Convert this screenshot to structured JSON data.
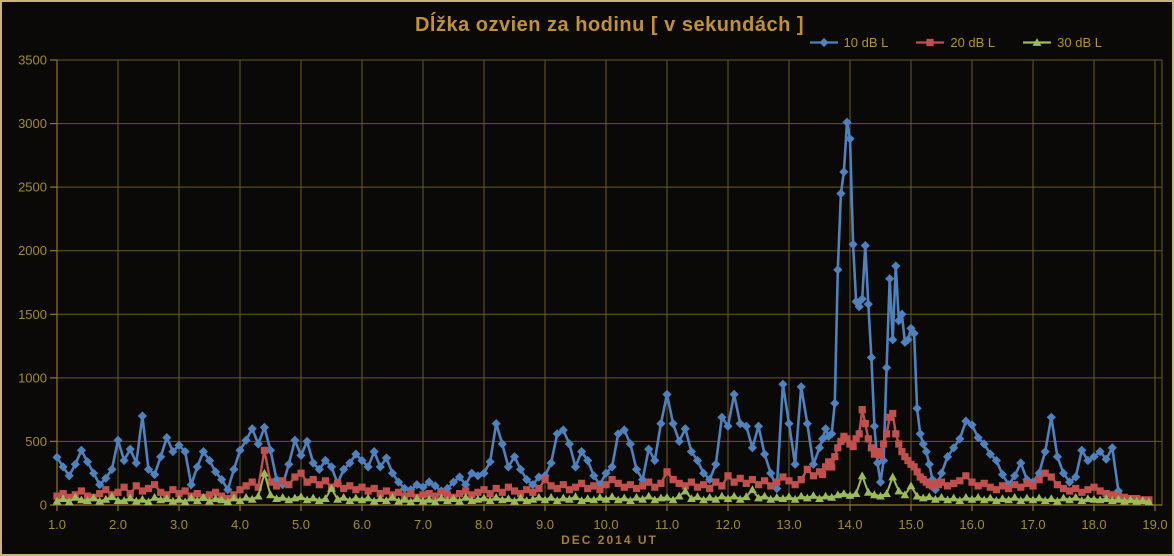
{
  "chart_data": {
    "type": "line",
    "title": "Dĺžka ozvien za hodinu [ v sekundách ]",
    "xlabel": "DEC 2014 UT",
    "ylabel": "",
    "xlim": [
      1.0,
      19.0
    ],
    "ylim": [
      0,
      3500
    ],
    "grid": true,
    "legend_position": "top-right",
    "x_ticks": [
      "1.0",
      "2.0",
      "3.0",
      "4.0",
      "5.0",
      "6.0",
      "7.0",
      "8.0",
      "9.0",
      "10.0",
      "11.0",
      "12.0",
      "13.0",
      "14.0",
      "15.0",
      "16.0",
      "17.0",
      "18.0",
      "19.0"
    ],
    "y_ticks": [
      "0",
      "500",
      "1000",
      "1500",
      "2000",
      "2500",
      "3000",
      "3500"
    ],
    "colors": {
      "background": "#0b0907",
      "frame": "#c9b27c",
      "grid": "#6a5a20",
      "axis": "#8f7926",
      "tick_label": "#a08c30",
      "title": "#bf9237",
      "axis_title": "#a08038",
      "legend_label": "#b3942e"
    },
    "series": [
      {
        "name": "10 dB L",
        "color": "#4f81bd",
        "marker": "diamond",
        "segments": [
          {
            "x0": 1.0,
            "dx": 0.1,
            "values": [
              375,
              300,
              230,
              320,
              430,
              340,
              250,
              160,
              210,
              280,
              510,
              350,
              440,
              330,
              700,
              280,
              240,
              380,
              530,
              420,
              470,
              420,
              160,
              300,
              420,
              350,
              260,
              200,
              120,
              280,
              430,
              510,
              600,
              480,
              610,
              430,
              200,
              160,
              320,
              510,
              390,
              500,
              330,
              280,
              350,
              300,
              170,
              280,
              330,
              400,
              350,
              300,
              420,
              300,
              370,
              250,
              180,
              130,
              120,
              160,
              140,
              180,
              150,
              110,
              130,
              180,
              220,
              160,
              250,
              230,
              250,
              340,
              640,
              480,
              300,
              380,
              280,
              200,
              160,
              220,
              230,
              330,
              560,
              590,
              480,
              300,
              420,
              350,
              230,
              160,
              250,
              300,
              560,
              590,
              480,
              280,
              200,
              440,
              350,
              640,
              870,
              640,
              500,
              600,
              420,
              350,
              250,
              200,
              320,
              690,
              620,
              870,
              640,
              620,
              450,
              620,
              400,
              250,
              130,
              950,
              640,
              320,
              930,
              640,
              320,
              450
            ]
          },
          {
            "x0": 13.55,
            "dx": 0.05,
            "values": [
              520,
              600,
              540,
              560,
              800,
              1850,
              2450,
              2620,
              3010,
              2880,
              2050,
              1600,
              1560,
              1620,
              2040,
              1580,
              1160,
              620,
              330,
              180,
              350,
              1080,
              1780,
              1300,
              1880,
              1450,
              1500,
              1280,
              1300,
              1390,
              1350,
              760,
              560,
              480,
              420,
              320,
              200,
              120,
              180,
              250
            ]
          },
          {
            "x0": 15.6,
            "dx": 0.1,
            "values": [
              380,
              450,
              520,
              660,
              630,
              530,
              480,
              400,
              350,
              240,
              160,
              230,
              330,
              200,
              180,
              250,
              420,
              690,
              380,
              250,
              180,
              220,
              430,
              350,
              380,
              420,
              360,
              450,
              110
            ]
          }
        ]
      },
      {
        "name": "20 dB L",
        "color": "#c0504d",
        "marker": "square",
        "segments": [
          {
            "x0": 1.0,
            "dx": 0.1,
            "values": [
              70,
              90,
              60,
              80,
              110,
              70,
              60,
              90,
              120,
              80,
              100,
              140,
              90,
              150,
              110,
              130,
              160,
              100,
              80,
              120,
              90,
              110,
              70,
              90,
              60,
              80,
              100,
              70,
              50,
              80,
              120,
              150,
              180,
              140,
              430,
              180,
              150,
              190,
              160,
              220,
              250,
              180,
              200,
              160,
              190,
              140,
              170,
              130,
              150,
              120,
              140,
              110,
              130,
              90,
              110,
              80,
              100,
              70,
              90,
              60,
              80,
              90,
              70,
              100,
              80,
              60,
              90,
              110,
              80,
              100,
              120,
              90,
              130,
              100,
              140,
              110,
              90,
              120,
              100,
              130,
              200,
              150,
              130,
              160,
              120,
              140,
              170,
              130,
              150,
              120,
              160,
              200,
              170,
              140,
              160,
              130,
              150,
              180,
              140,
              170,
              260,
              200,
              170,
              150,
              180,
              140,
              160,
              130,
              180,
              150,
              230,
              180,
              210,
              170,
              200,
              160,
              190,
              150,
              180,
              220,
              190,
              160,
              200,
              280,
              230,
              260
            ]
          },
          {
            "x0": 13.55,
            "dx": 0.05,
            "values": [
              240,
              300,
              340,
              300,
              380,
              450,
              500,
              540,
              520,
              480,
              460,
              520,
              560,
              750,
              640,
              520,
              450,
              400,
              420,
              390,
              480,
              560,
              690,
              720,
              560,
              480,
              420,
              380,
              350,
              320,
              300,
              260,
              220,
              200,
              180,
              160,
              150,
              170,
              160,
              180
            ]
          },
          {
            "x0": 15.6,
            "dx": 0.1,
            "values": [
              150,
              170,
              190,
              230,
              180,
              150,
              170,
              140,
              120,
              150,
              130,
              160,
              140,
              170,
              150,
              200,
              250,
              220,
              160,
              130,
              110,
              130,
              100,
              120,
              140,
              110,
              90,
              80,
              70,
              60,
              50,
              50,
              40,
              40
            ]
          }
        ]
      },
      {
        "name": "30 dB L",
        "color": "#9bbb59",
        "marker": "triangle",
        "segments": [
          {
            "x0": 1.0,
            "dx": 0.1,
            "values": [
              30,
              50,
              25,
              60,
              40,
              35,
              55,
              30,
              45,
              65,
              35,
              35,
              55,
              30,
              45,
              25,
              60,
              40,
              50,
              30,
              45,
              25,
              55,
              35,
              60,
              30,
              50,
              40,
              25,
              55,
              35,
              60,
              45,
              70,
              250,
              80,
              50,
              60,
              40,
              55,
              65,
              40,
              55,
              35,
              50,
              130,
              45,
              60,
              35,
              55,
              40,
              55,
              30,
              50,
              35,
              60,
              30,
              45,
              25,
              50,
              30,
              45,
              25,
              55,
              35,
              50,
              30,
              60,
              35,
              45,
              55,
              35,
              60,
              40,
              50,
              30,
              55,
              35,
              45,
              60,
              40,
              60,
              35,
              55,
              45,
              65,
              35,
              50,
              40,
              60,
              45,
              65,
              40,
              55,
              35,
              60,
              45,
              70,
              40,
              55,
              60,
              40,
              70,
              110,
              50,
              65,
              40,
              60,
              45,
              70,
              50,
              70,
              45,
              65,
              120,
              55,
              70,
              45,
              60,
              50,
              65,
              45,
              70,
              55,
              75,
              50,
              70,
              60,
              80,
              90,
              75,
              90,
              230,
              100,
              80,
              70,
              90,
              220,
              110,
              80,
              150,
              70,
              55,
              65,
              45,
              60,
              40,
              55,
              35,
              60,
              45,
              60,
              40,
              55,
              35,
              50,
              40,
              60,
              35,
              55,
              40,
              55,
              35,
              50,
              30,
              55,
              40,
              60,
              35,
              50,
              45,
              40,
              50,
              35,
              45,
              30,
              40,
              30,
              35,
              25
            ]
          }
        ]
      }
    ]
  }
}
